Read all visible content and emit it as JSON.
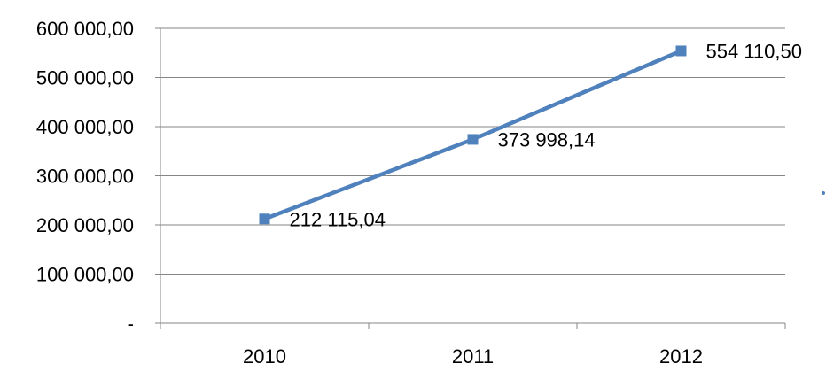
{
  "chart_data": {
    "type": "line",
    "categories": [
      "2010",
      "2011",
      "2012"
    ],
    "series": [
      {
        "values": [
          212115.04,
          373998.14,
          554110.5
        ],
        "data_labels": [
          "212 115,04",
          "373 998,14",
          "554 110,50"
        ],
        "color": "#4F81BD",
        "marker": "square"
      }
    ],
    "ylim": [
      0,
      600000
    ],
    "yticks": [
      0,
      100000,
      200000,
      300000,
      400000,
      500000,
      600000
    ],
    "ytick_labels": [
      "-",
      "100 000,00",
      "200 000,00",
      "300 000,00",
      "400 000,00",
      "500 000,00",
      "600 000,00"
    ],
    "grid": true,
    "legend": "none",
    "title": "",
    "xlabel": "",
    "ylabel": ""
  }
}
